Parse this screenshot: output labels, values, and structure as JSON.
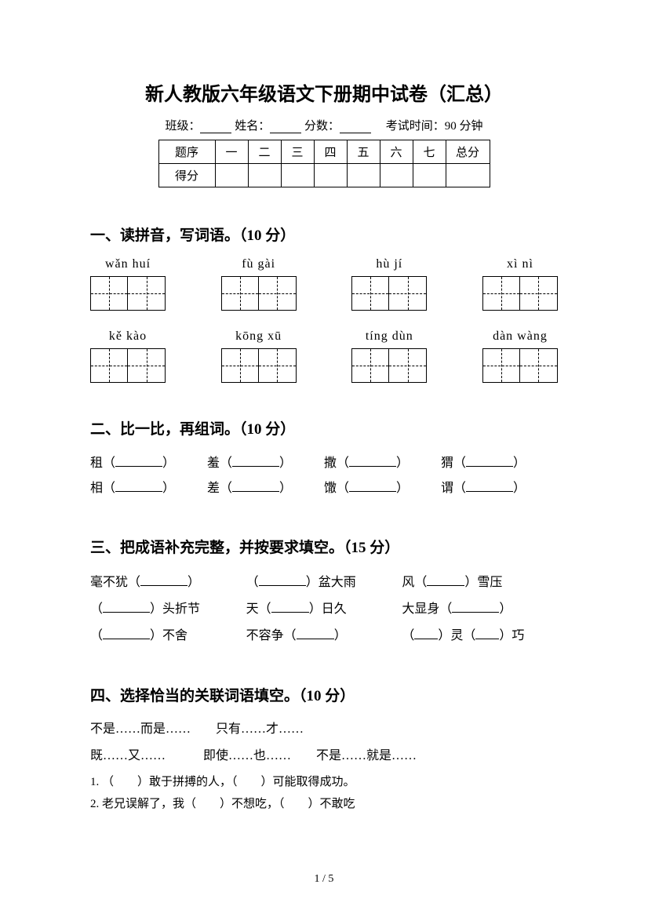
{
  "title": "新人教版六年级语文下册期中试卷（汇总）",
  "header": {
    "class_label": "班级：",
    "name_label": "姓名：",
    "score_label": "分数：",
    "time_label": "考试时间：90 分钟"
  },
  "score_table": {
    "row1": [
      "题序",
      "一",
      "二",
      "三",
      "四",
      "五",
      "六",
      "七",
      "总分"
    ],
    "row2_label": "得分"
  },
  "sections": {
    "s1": {
      "title": "一、读拼音，写词语。（10 分）",
      "row1": [
        "wǎn huí",
        "fù gài",
        "hù  jí",
        "xì  nì"
      ],
      "row2": [
        "kě  kào",
        "kōng xū",
        "tíng dùn",
        "dàn wàng"
      ]
    },
    "s2": {
      "title": "二、比一比，再组词。（10 分）",
      "row1": [
        "租",
        "羞",
        "撒",
        "猬"
      ],
      "row2": [
        "相",
        "差",
        "馓",
        "谓"
      ]
    },
    "s3": {
      "title": "三、把成语补充完整，并按要求填空。（15 分）",
      "rows": [
        [
          {
            "pre": "毫不犹（",
            "blank": "u",
            "post": "）"
          },
          {
            "pre": "（",
            "blank": "u",
            "post": "）盆大雨"
          },
          {
            "pre": "风（",
            "blank": "s",
            "post": "）雪压"
          }
        ],
        [
          {
            "pre": "（",
            "blank": "u",
            "post": "）头折节"
          },
          {
            "pre": "天（",
            "blank": "s",
            "post": "）日久"
          },
          {
            "pre": "大显身（",
            "blank": "u",
            "post": "）"
          }
        ],
        [
          {
            "pre": "（",
            "blank": "u",
            "post": "）不舍"
          },
          {
            "pre": "不容争（",
            "blank": "s",
            "post": "）"
          },
          {
            "pre": "（",
            "blank": "t",
            "post": "）灵（",
            "blank2": "t",
            "post2": "）巧"
          }
        ]
      ]
    },
    "s4": {
      "title": "四、选择恰当的关联词语填空。（10 分）",
      "opts1": "不是……而是……　　只有……才……",
      "opts2": "既……又……　　　即使……也……　　不是……就是……",
      "q1": "1. （　　）敢于拼搏的人，（　　）可能取得成功。",
      "q2": "2. 老兄误解了，我（　　）不想吃，（　　）不敢吃"
    }
  },
  "page_num": "1  /  5"
}
